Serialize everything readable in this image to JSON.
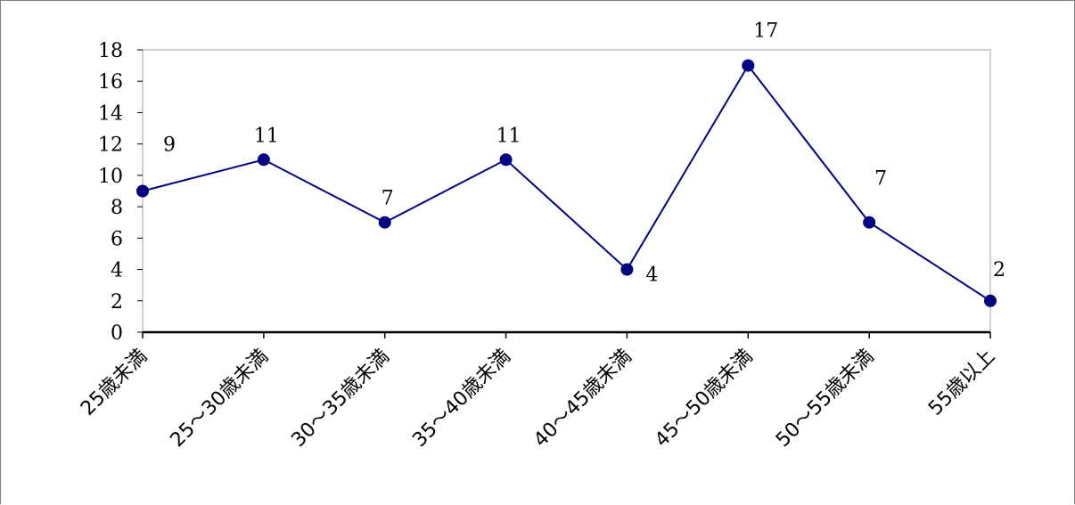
{
  "chart_data": {
    "type": "line",
    "categories": [
      "25歳未満",
      "25～30歳未満",
      "30～35歳未満",
      "35～40歳未満",
      "40～45歳未満",
      "45～50歳未満",
      "50～55歳未満",
      "55歳以上"
    ],
    "series": [
      {
        "values": [
          9,
          11,
          7,
          11,
          4,
          17,
          7,
          2
        ]
      }
    ],
    "data_labels": [
      "9",
      "11",
      "7",
      "11",
      "4",
      "17",
      "7",
      "2"
    ],
    "y_ticks": [
      "0",
      "2",
      "4",
      "6",
      "8",
      "10",
      "12",
      "14",
      "16",
      "18"
    ],
    "ylim": [
      0,
      18
    ],
    "title": "",
    "xlabel": "",
    "ylabel": "",
    "grid": false,
    "legend": "none",
    "colors": {
      "line": "#000080",
      "marker": "#000080",
      "plot_border": "#c0c0c0",
      "x_axis": "#000000"
    }
  }
}
